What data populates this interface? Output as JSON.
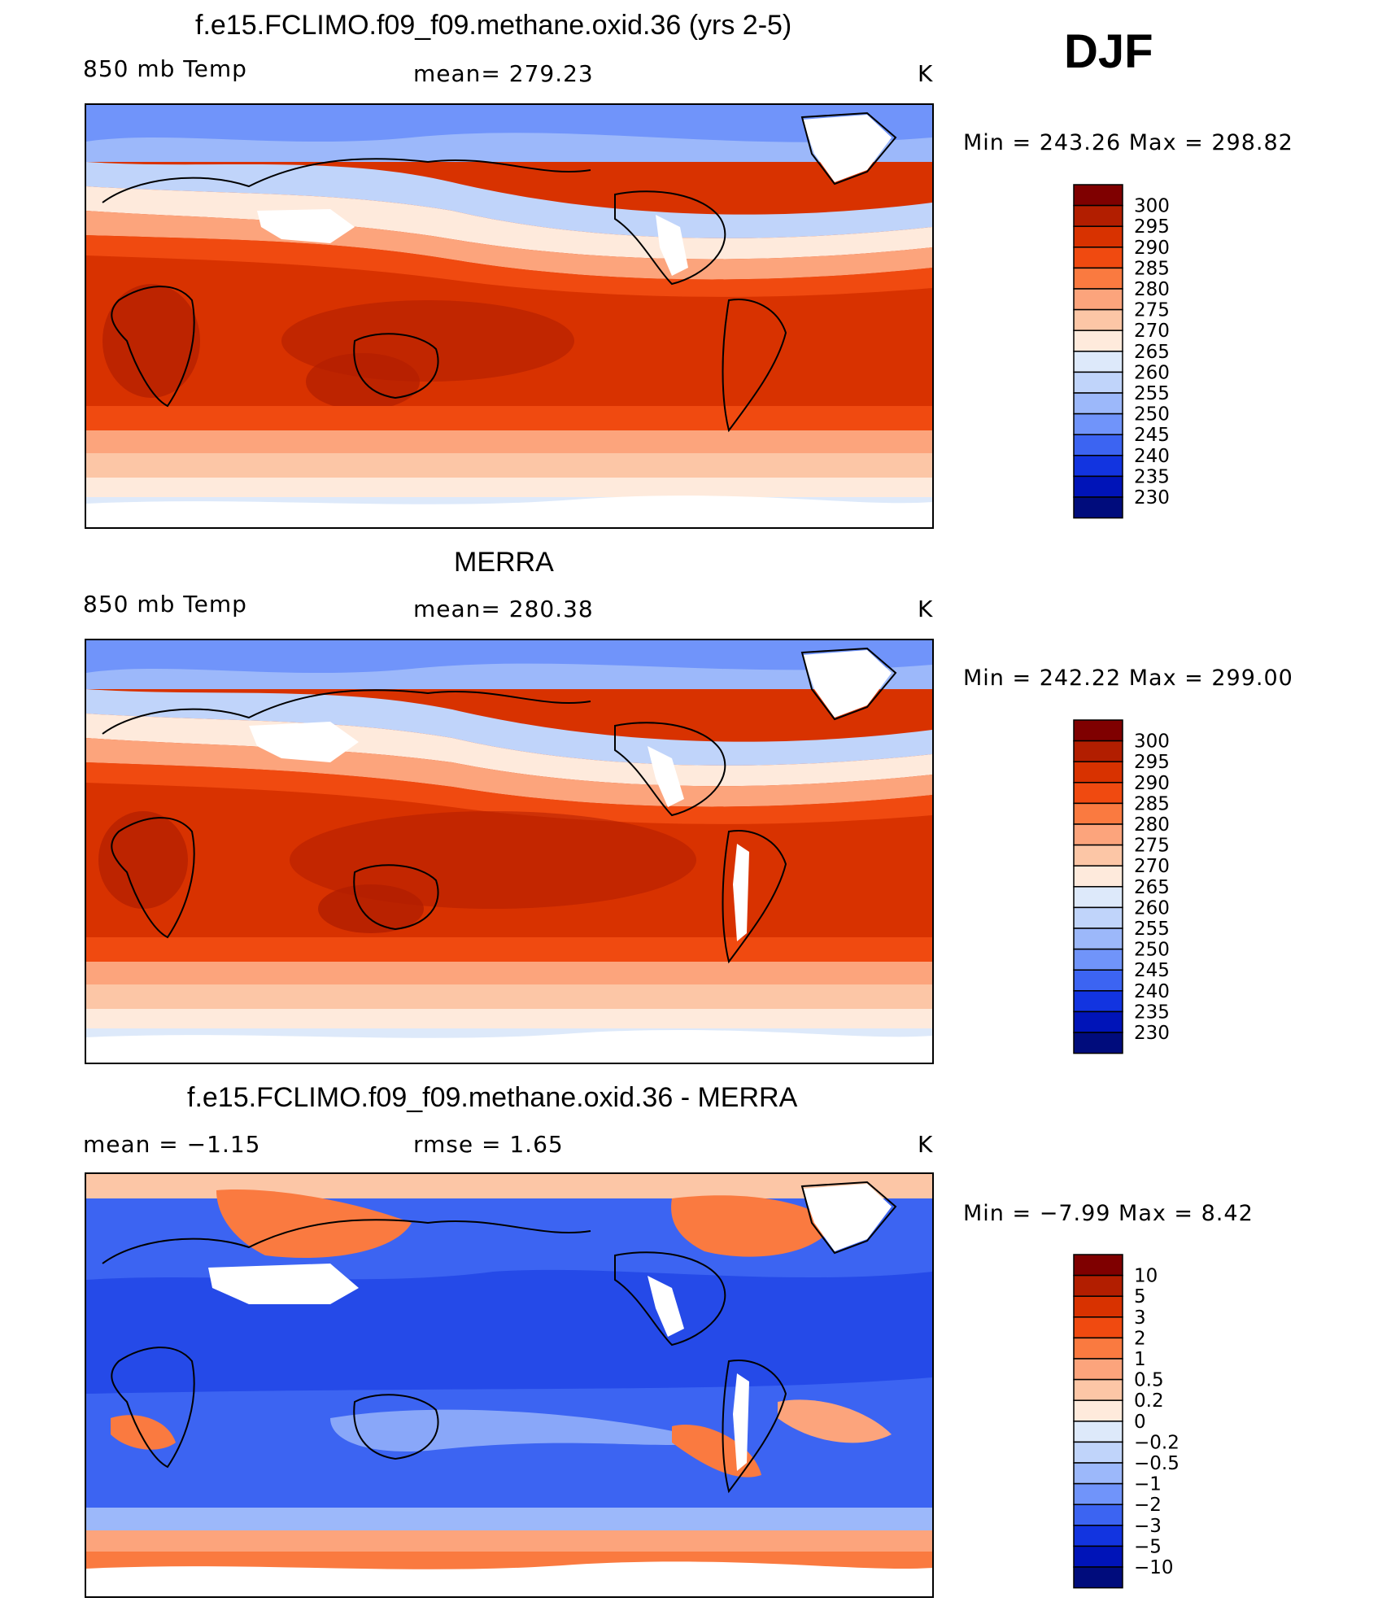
{
  "season": "DJF",
  "panels": [
    {
      "id": "model",
      "title": "f.e15.FCLIMO.f09_f09.methane.oxid.36 (yrs 2-5)",
      "left_label": "850 mb Temp",
      "center_label": "mean=  279.23",
      "units": "K",
      "minmax": "Min  =  243.26  Max  =  298.82",
      "colorbar": {
        "labels": [
          "300",
          "295",
          "290",
          "285",
          "280",
          "275",
          "270",
          "265",
          "260",
          "255",
          "250",
          "245",
          "240",
          "235",
          "230"
        ],
        "colors": [
          "#7f0000",
          "#b21e00",
          "#d83200",
          "#f04a10",
          "#fa7a40",
          "#fca47c",
          "#fcc6a6",
          "#feeadc",
          "#dde9fa",
          "#c0d4fa",
          "#9cb8fa",
          "#7094fa",
          "#3c64f2",
          "#1234e0",
          "#0014b8",
          "#000c7c"
        ]
      }
    },
    {
      "id": "obs",
      "title": "MERRA",
      "left_label": "850 mb Temp",
      "center_label": "mean=  280.38",
      "units": "K",
      "minmax": "Min  =  242.22  Max  =  299.00",
      "colorbar": {
        "labels": [
          "300",
          "295",
          "290",
          "285",
          "280",
          "275",
          "270",
          "265",
          "260",
          "255",
          "250",
          "245",
          "240",
          "235",
          "230"
        ],
        "colors": [
          "#7f0000",
          "#b21e00",
          "#d83200",
          "#f04a10",
          "#fa7a40",
          "#fca47c",
          "#fcc6a6",
          "#feeadc",
          "#dde9fa",
          "#c0d4fa",
          "#9cb8fa",
          "#7094fa",
          "#3c64f2",
          "#1234e0",
          "#0014b8",
          "#000c7c"
        ]
      }
    },
    {
      "id": "diff",
      "title": "f.e15.FCLIMO.f09_f09.methane.oxid.36 - MERRA",
      "left_label": "mean  =    −1.15",
      "center_label": "rmse  =     1.65",
      "units": "K",
      "minmax": "Min  =    −7.99  Max  =      8.42",
      "colorbar": {
        "labels": [
          "10",
          "5",
          "3",
          "2",
          "1",
          "0.5",
          "0.2",
          "0",
          "−0.2",
          "−0.5",
          "−1",
          "−2",
          "−3",
          "−5",
          "−10"
        ],
        "colors": [
          "#7f0000",
          "#b21e00",
          "#d83200",
          "#f04a10",
          "#fa7a40",
          "#fca47c",
          "#fcc6a6",
          "#feeadc",
          "#dde9fa",
          "#c0d4fa",
          "#9cb8fa",
          "#7094fa",
          "#3c64f2",
          "#1234e0",
          "#0014b8",
          "#000c7c"
        ]
      }
    }
  ]
}
